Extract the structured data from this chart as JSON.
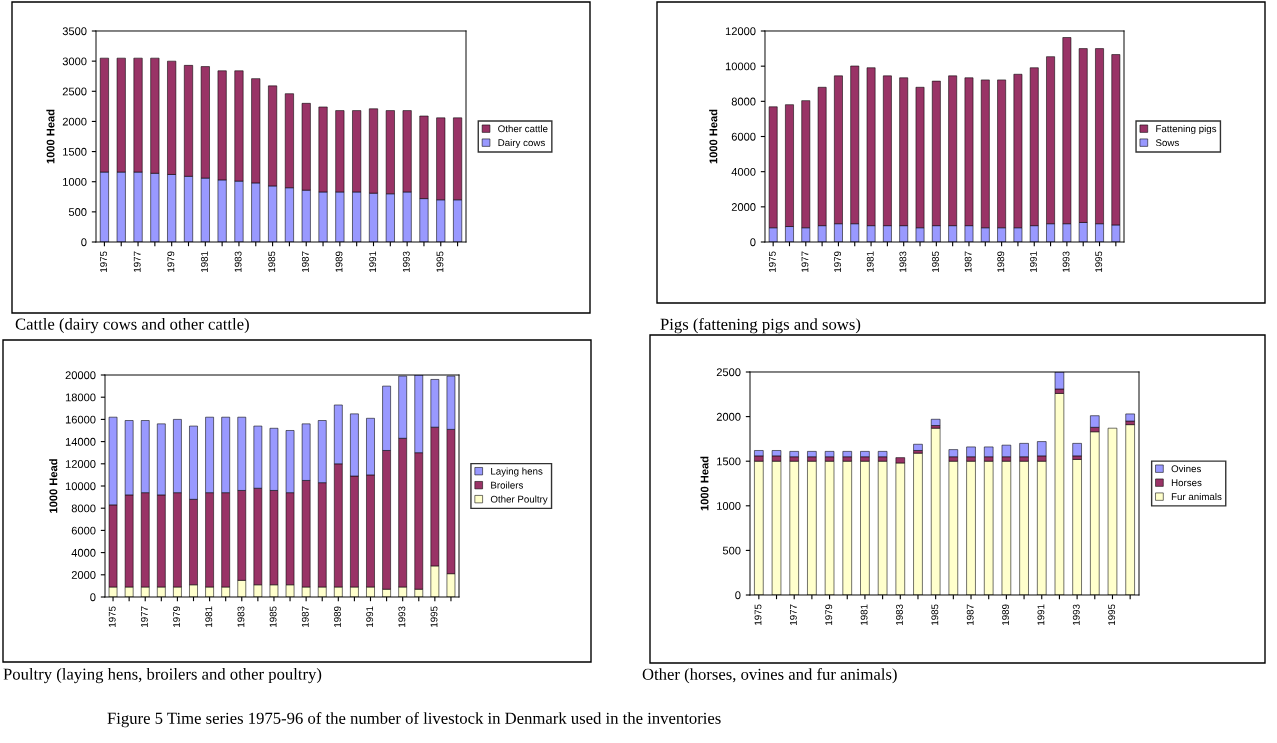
{
  "chart_data": [
    {
      "type": "bar",
      "stacked": true,
      "title": "Cattle (dairy cows and other cattle)",
      "ylabel": "1000 Head",
      "categories": [
        "1975",
        null,
        "1977",
        null,
        "1979",
        null,
        "1981",
        null,
        "1983",
        null,
        "1985",
        null,
        "1987",
        null,
        "1989",
        null,
        "1991",
        null,
        "1993",
        null,
        "1995",
        null
      ],
      "series": [
        {
          "name": "Dairy cows",
          "color": "#9999ff",
          "values": [
            1160,
            1160,
            1160,
            1140,
            1120,
            1090,
            1060,
            1030,
            1010,
            980,
            930,
            900,
            860,
            830,
            830,
            830,
            810,
            800,
            830,
            720,
            700,
            700
          ]
        },
        {
          "name": "Other cattle",
          "color": "#993366",
          "values": [
            1890,
            1890,
            1890,
            1910,
            1880,
            1840,
            1850,
            1810,
            1830,
            1730,
            1660,
            1560,
            1440,
            1410,
            1350,
            1350,
            1400,
            1380,
            1350,
            1370,
            1360,
            1360
          ]
        }
      ],
      "ylim": [
        0,
        3500
      ],
      "yticks": [
        0,
        500,
        1000,
        1500,
        2000,
        2500,
        3000,
        3500
      ],
      "legend": "right",
      "grid": false,
      "annotations": [
        "Figure 5 Time series 1975-96 of the number of livestock in Denmark used in the inventories"
      ]
    },
    {
      "type": "bar",
      "stacked": true,
      "title": "Pigs (fattening pigs and sows)",
      "ylabel": "1000 Head",
      "categories": [
        "1975",
        null,
        "1977",
        null,
        "1979",
        null,
        "1981",
        null,
        "1983",
        null,
        "1985",
        null,
        "1987",
        null,
        "1989",
        null,
        "1991",
        null,
        "1993",
        null,
        "1995",
        null
      ],
      "series": [
        {
          "name": "Sows",
          "color": "#9999ff",
          "values": [
            810,
            880,
            810,
            930,
            1040,
            1040,
            930,
            930,
            930,
            810,
            930,
            930,
            930,
            810,
            810,
            810,
            930,
            1040,
            1040,
            1110,
            1040,
            970
          ]
        },
        {
          "name": "Fattening pigs",
          "color": "#993366",
          "values": [
            6880,
            6930,
            7230,
            7870,
            8410,
            8970,
            8980,
            8520,
            8410,
            7990,
            8220,
            8520,
            8410,
            8410,
            8410,
            8730,
            8980,
            9500,
            10590,
            9890,
            9960,
            9690
          ]
        }
      ],
      "ylim": [
        0,
        12000
      ],
      "yticks": [
        0,
        2000,
        4000,
        6000,
        8000,
        10000,
        12000
      ],
      "legend": "right",
      "grid": false
    },
    {
      "type": "bar",
      "stacked": true,
      "title": "Poultry (laying hens, broilers and other poultry)",
      "ylabel": "1000 Head",
      "categories": [
        "1975",
        null,
        "1977",
        null,
        "1979",
        null,
        "1981",
        null,
        "1983",
        null,
        "1985",
        null,
        "1987",
        null,
        "1989",
        null,
        "1991",
        null,
        "1993",
        null,
        "1995",
        null
      ],
      "series": [
        {
          "name": "Other Poultry",
          "color": "#ffffcc",
          "values": [
            900,
            900,
            900,
            900,
            900,
            1100,
            900,
            900,
            1500,
            1100,
            1100,
            1100,
            900,
            900,
            900,
            900,
            900,
            700,
            900,
            700,
            2800,
            2100
          ]
        },
        {
          "name": "Broilers",
          "color": "#993366",
          "values": [
            7400,
            8300,
            8500,
            8300,
            8500,
            7700,
            8500,
            8500,
            8100,
            8700,
            8500,
            8300,
            9600,
            9400,
            11100,
            10000,
            10100,
            12500,
            13400,
            12300,
            12500,
            13000
          ]
        },
        {
          "name": "Laying hens",
          "color": "#9999ff",
          "values": [
            7900,
            6700,
            6500,
            6400,
            6600,
            6600,
            6800,
            6800,
            6600,
            5600,
            5600,
            5600,
            5100,
            5600,
            5300,
            5600,
            5100,
            5800,
            5600,
            7000,
            4300,
            4800
          ]
        }
      ],
      "ylim": [
        0,
        20000
      ],
      "yticks": [
        0,
        2000,
        4000,
        6000,
        8000,
        10000,
        12000,
        14000,
        16000,
        18000,
        20000
      ],
      "legend": "right",
      "grid": false
    },
    {
      "type": "bar",
      "stacked": true,
      "title": "Other (horses, ovines and fur animals)",
      "ylabel": "1000 Head",
      "categories": [
        "1975",
        null,
        "1977",
        null,
        "1979",
        null,
        "1981",
        null,
        "1983",
        null,
        "1985",
        null,
        "1987",
        null,
        "1989",
        null,
        "1991",
        null,
        "1993",
        null,
        "1995",
        null
      ],
      "series": [
        {
          "name": "Fur animals",
          "color": "#ffffcc",
          "values": [
            1500,
            1500,
            1500,
            1500,
            1500,
            1500,
            1500,
            1500,
            1480,
            1590,
            1870,
            1500,
            1500,
            1500,
            1500,
            1500,
            1500,
            2260,
            1520,
            1830,
            1870,
            1910
          ]
        },
        {
          "name": "Horses",
          "color": "#993366",
          "values": [
            60,
            60,
            50,
            50,
            50,
            50,
            50,
            50,
            60,
            30,
            30,
            50,
            50,
            50,
            50,
            50,
            60,
            50,
            40,
            50,
            null,
            40
          ]
        },
        {
          "name": "Ovines",
          "color": "#9999ff",
          "values": [
            60,
            60,
            60,
            60,
            60,
            60,
            60,
            60,
            null,
            70,
            70,
            80,
            110,
            110,
            130,
            150,
            160,
            190,
            140,
            130,
            null,
            80
          ]
        }
      ],
      "ylim": [
        0,
        2500
      ],
      "yticks": [
        0,
        500,
        1000,
        1500,
        2000,
        2500
      ],
      "legend": "right",
      "grid": false
    }
  ]
}
